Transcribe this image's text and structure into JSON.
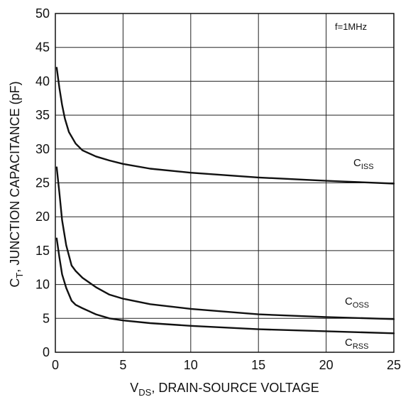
{
  "chart_data": {
    "type": "line",
    "xlabel": {
      "prefix": "V",
      "sub": "DS",
      "rest": ", DRAIN-SOURCE VOLTAGE"
    },
    "ylabel": {
      "prefix": "C",
      "sub": "T",
      "rest": ", JUNCTION CAPACITANCE (pF)"
    },
    "xlim": [
      0,
      25
    ],
    "ylim": [
      0,
      50
    ],
    "x_ticks": [
      "0",
      "5",
      "10",
      "15",
      "20",
      "25"
    ],
    "y_ticks": [
      "0",
      "5",
      "10",
      "15",
      "20",
      "25",
      "30",
      "35",
      "40",
      "45",
      "50"
    ],
    "grid": true,
    "annotation": "f=1MHz",
    "series": [
      {
        "name": "C_ISS",
        "label": {
          "main": "C",
          "sub": "ISS"
        },
        "x": [
          0.1,
          0.3,
          0.5,
          0.7,
          1.0,
          1.5,
          2.0,
          3.0,
          4.0,
          5.0,
          7.0,
          10.0,
          15.0,
          20.0,
          25.0
        ],
        "y": [
          42.0,
          39.0,
          36.5,
          34.5,
          32.5,
          30.8,
          29.8,
          28.9,
          28.3,
          27.8,
          27.1,
          26.5,
          25.8,
          25.3,
          24.9
        ]
      },
      {
        "name": "C_OSS",
        "label": {
          "main": "C",
          "sub": "OSS"
        },
        "x": [
          0.1,
          0.3,
          0.5,
          0.8,
          1.2,
          1.5,
          2.0,
          3.0,
          4.0,
          5.0,
          7.0,
          10.0,
          15.0,
          20.0,
          25.0
        ],
        "y": [
          27.3,
          23.5,
          19.5,
          15.8,
          12.8,
          12.0,
          11.0,
          9.6,
          8.5,
          7.9,
          7.1,
          6.4,
          5.6,
          5.2,
          4.9
        ]
      },
      {
        "name": "C_RSS",
        "label": {
          "main": "C",
          "sub": "RSS"
        },
        "x": [
          0.1,
          0.3,
          0.5,
          0.8,
          1.2,
          1.5,
          2.0,
          3.0,
          4.0,
          5.0,
          7.0,
          10.0,
          15.0,
          20.0,
          25.0
        ],
        "y": [
          16.8,
          14.0,
          11.5,
          9.5,
          7.6,
          7.0,
          6.5,
          5.6,
          5.0,
          4.7,
          4.3,
          3.9,
          3.4,
          3.1,
          2.8
        ]
      }
    ]
  }
}
